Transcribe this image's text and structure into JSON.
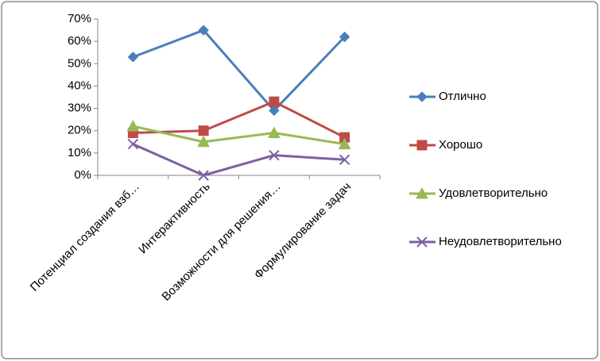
{
  "chart_data": {
    "type": "line",
    "categories": [
      "Потенциал создания взб…",
      "Интерактивность",
      "Возможности для решения…",
      "Формулирование задач"
    ],
    "series": [
      {
        "name": "Отлично",
        "color": "#4a7ebb",
        "marker": "diamond",
        "values": [
          53,
          65,
          29,
          62
        ]
      },
      {
        "name": "Хорошо",
        "color": "#be4b48",
        "marker": "square",
        "values": [
          19,
          20,
          33,
          17
        ]
      },
      {
        "name": "Удовлетворительно",
        "color": "#98b954",
        "marker": "triangle",
        "values": [
          22,
          15,
          19,
          14
        ]
      },
      {
        "name": "Неудовлетворительно",
        "color": "#7d60a0",
        "marker": "x",
        "values": [
          14,
          0,
          9,
          7
        ]
      }
    ],
    "ylim": [
      0,
      70
    ],
    "yticks": [
      {
        "value": 0,
        "label": "0%"
      },
      {
        "value": 10,
        "label": "10%"
      },
      {
        "value": 20,
        "label": "20%"
      },
      {
        "value": 30,
        "label": "30%"
      },
      {
        "value": 40,
        "label": "40%"
      },
      {
        "value": 50,
        "label": "50%"
      },
      {
        "value": 60,
        "label": "60%"
      },
      {
        "value": 70,
        "label": "70%"
      }
    ],
    "grid": false,
    "legend": "right"
  }
}
